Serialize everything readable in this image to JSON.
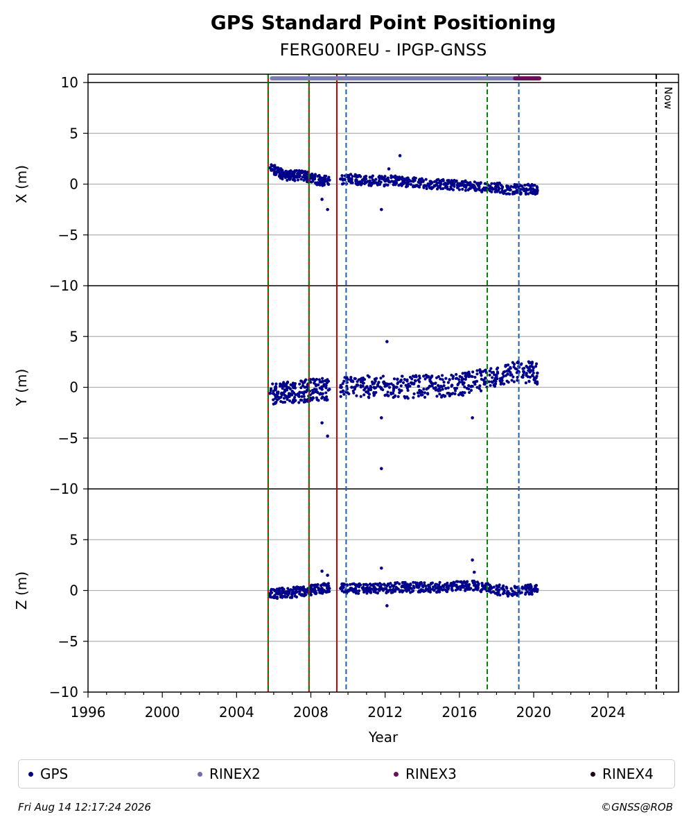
{
  "title": "GPS Standard Point Positioning",
  "subtitle": "FERG00REU - IPGP-GNSS",
  "now_label": "Now",
  "footer": {
    "timestamp": "Fri Aug 14 12:17:24 2026",
    "credit": "©GNSS@ROB"
  },
  "legend": [
    {
      "label": "GPS",
      "color": "#00008b"
    },
    {
      "label": "RINEX2",
      "color": "#7b68ae"
    },
    {
      "label": "RINEX3",
      "color": "#6b0f5a"
    },
    {
      "label": "RINEX4",
      "color": "#1a0a1a"
    }
  ],
  "chart_data": {
    "type": "scatter",
    "xlabel": "Year",
    "xlim": [
      1996,
      2027.8
    ],
    "xticks": [
      "1996",
      "2000",
      "2004",
      "2008",
      "2012",
      "2016",
      "2020",
      "2024"
    ],
    "panels": [
      {
        "ylabel": "X (m)",
        "ylim": [
          -10,
          10
        ],
        "yticks": [
          "10",
          "5",
          "0",
          "−5",
          "−10"
        ],
        "series": [
          {
            "name": "GPS",
            "values": [
              [
                2005.8,
                1.6
              ],
              [
                2006.2,
                1.2
              ],
              [
                2006.6,
                0.9
              ],
              [
                2007.0,
                0.8
              ],
              [
                2007.4,
                0.9
              ],
              [
                2007.8,
                0.7
              ],
              [
                2008.2,
                0.5
              ],
              [
                2008.6,
                0.3
              ],
              [
                2009.0,
                0.4
              ],
              [
                2009.6,
                0.5
              ],
              [
                2010.2,
                0.5
              ],
              [
                2010.8,
                0.4
              ],
              [
                2011.4,
                0.3
              ],
              [
                2012.0,
                0.3
              ],
              [
                2012.6,
                0.4
              ],
              [
                2013.2,
                0.2
              ],
              [
                2013.8,
                0.2
              ],
              [
                2014.4,
                0.0
              ],
              [
                2015.0,
                0.0
              ],
              [
                2015.6,
                -0.1
              ],
              [
                2016.2,
                -0.1
              ],
              [
                2016.8,
                -0.2
              ],
              [
                2017.4,
                -0.4
              ],
              [
                2018.0,
                -0.3
              ],
              [
                2018.6,
                -0.5
              ],
              [
                2019.2,
                -0.5
              ],
              [
                2019.8,
                -0.5
              ],
              [
                2020.2,
                -0.6
              ],
              [
                2008.6,
                -1.5
              ],
              [
                2008.9,
                -2.5
              ],
              [
                2011.8,
                -2.5
              ],
              [
                2012.8,
                2.8
              ],
              [
                2012.2,
                1.5
              ]
            ]
          }
        ]
      },
      {
        "ylabel": "Y (m)",
        "ylim": [
          -10,
          10
        ],
        "yticks": [
          "5",
          "0",
          "−5",
          "−10"
        ],
        "series": [
          {
            "name": "GPS",
            "values": [
              [
                2005.8,
                -0.6
              ],
              [
                2006.2,
                -0.5
              ],
              [
                2006.6,
                -0.4
              ],
              [
                2007.0,
                -0.4
              ],
              [
                2007.4,
                -0.5
              ],
              [
                2007.8,
                -0.3
              ],
              [
                2008.2,
                -0.2
              ],
              [
                2008.6,
                -0.2
              ],
              [
                2009.0,
                -0.2
              ],
              [
                2009.6,
                0.0
              ],
              [
                2010.2,
                0.0
              ],
              [
                2010.8,
                0.1
              ],
              [
                2011.4,
                0.0
              ],
              [
                2012.0,
                0.1
              ],
              [
                2012.6,
                0.0
              ],
              [
                2013.2,
                0.0
              ],
              [
                2013.8,
                0.1
              ],
              [
                2014.4,
                0.1
              ],
              [
                2015.0,
                0.1
              ],
              [
                2015.6,
                0.2
              ],
              [
                2016.2,
                0.3
              ],
              [
                2016.8,
                0.5
              ],
              [
                2017.4,
                0.9
              ],
              [
                2018.0,
                1.1
              ],
              [
                2018.6,
                1.3
              ],
              [
                2019.2,
                1.5
              ],
              [
                2019.8,
                1.5
              ],
              [
                2020.2,
                1.4
              ],
              [
                2008.6,
                -3.5
              ],
              [
                2008.9,
                -4.8
              ],
              [
                2011.8,
                -8.0
              ],
              [
                2012.1,
                4.5
              ],
              [
                2011.8,
                -3.0
              ],
              [
                2016.7,
                -3.0
              ]
            ]
          }
        ]
      },
      {
        "ylabel": "Z (m)",
        "ylim": [
          -10,
          10
        ],
        "yticks": [
          "5",
          "0",
          "−5",
          "−10"
        ],
        "series": [
          {
            "name": "GPS",
            "values": [
              [
                2005.8,
                -0.4
              ],
              [
                2006.2,
                -0.3
              ],
              [
                2006.6,
                -0.2
              ],
              [
                2007.0,
                -0.2
              ],
              [
                2007.4,
                -0.1
              ],
              [
                2007.8,
                0.0
              ],
              [
                2008.2,
                0.1
              ],
              [
                2008.6,
                0.2
              ],
              [
                2009.0,
                0.2
              ],
              [
                2009.6,
                0.2
              ],
              [
                2010.2,
                0.2
              ],
              [
                2010.8,
                0.2
              ],
              [
                2011.4,
                0.2
              ],
              [
                2012.0,
                0.2
              ],
              [
                2012.6,
                0.3
              ],
              [
                2013.2,
                0.3
              ],
              [
                2013.8,
                0.3
              ],
              [
                2014.4,
                0.3
              ],
              [
                2015.0,
                0.3
              ],
              [
                2015.6,
                0.4
              ],
              [
                2016.2,
                0.4
              ],
              [
                2016.8,
                0.5
              ],
              [
                2017.4,
                0.3
              ],
              [
                2018.0,
                0.1
              ],
              [
                2018.6,
                -0.1
              ],
              [
                2019.2,
                0.0
              ],
              [
                2019.8,
                0.1
              ],
              [
                2020.2,
                0.1
              ],
              [
                2008.6,
                1.9
              ],
              [
                2008.9,
                1.5
              ],
              [
                2011.8,
                2.2
              ],
              [
                2012.1,
                -1.5
              ],
              [
                2016.7,
                3.0
              ],
              [
                2016.8,
                1.8
              ]
            ]
          }
        ]
      }
    ],
    "event_lines": [
      {
        "x": 2005.7,
        "color": "#007f00",
        "style": "dashed",
        "red_overlay": true
      },
      {
        "x": 2007.9,
        "color": "#007f00",
        "style": "dashed",
        "red_overlay": true
      },
      {
        "x": 2009.4,
        "color": "#cc0000",
        "style": "solid"
      },
      {
        "x": 2009.9,
        "color": "#1f5fa8",
        "style": "dashed"
      },
      {
        "x": 2017.5,
        "color": "#007f00",
        "style": "dashed"
      },
      {
        "x": 2019.2,
        "color": "#1f5fa8",
        "style": "dashed"
      },
      {
        "x": 2026.6,
        "color": "#000000",
        "style": "dashed"
      }
    ],
    "rinex_bars": [
      {
        "name": "RINEX2",
        "from": 2005.9,
        "to": 2019.2,
        "color": "#7b7bb5"
      },
      {
        "name": "RINEX3",
        "from": 2019.0,
        "to": 2020.3,
        "color": "#6b0f5a"
      }
    ],
    "data_extent": [
      2005.8,
      2020.3
    ]
  }
}
